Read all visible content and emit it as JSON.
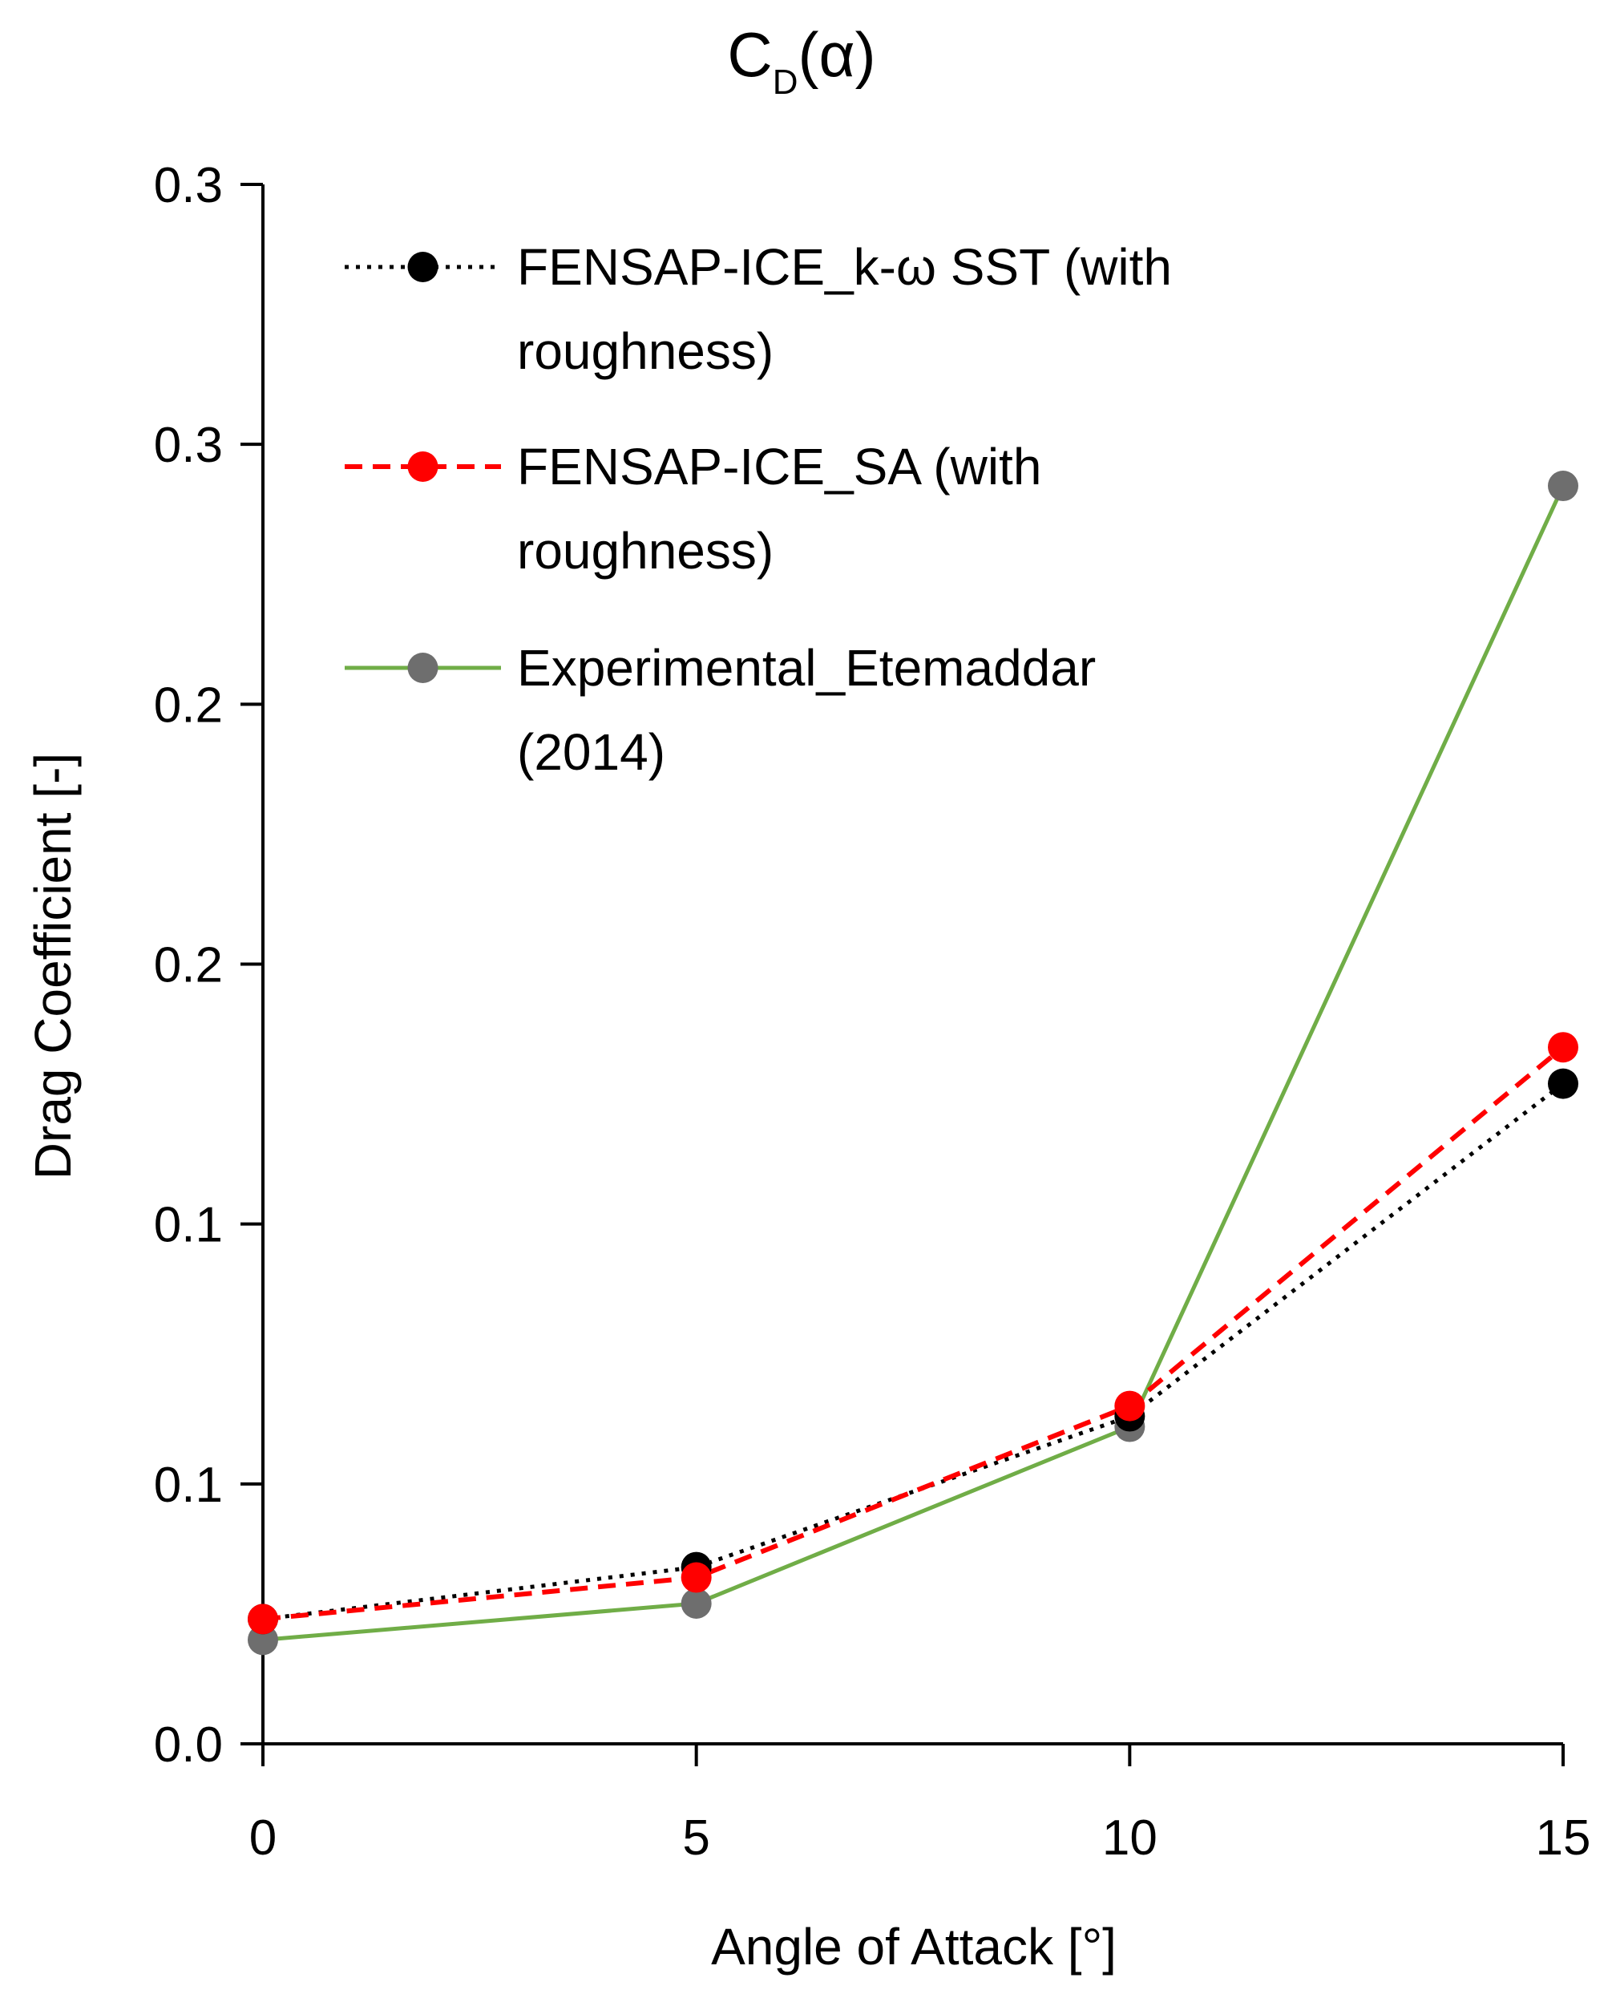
{
  "chart_data": {
    "type": "line",
    "title": {
      "main": "C",
      "sub": "D",
      "suffix": "(α)"
    },
    "xlabel": "Angle of Attack [°]",
    "ylabel": "Drag Coefficient [-]",
    "x": [
      0,
      5,
      10,
      15
    ],
    "x_ticks": [
      "0",
      "5",
      "10",
      "15"
    ],
    "xlim": [
      0,
      15
    ],
    "ylim": [
      0,
      0.3
    ],
    "y_ticks": [
      {
        "value": 0.0,
        "label": "0.0"
      },
      {
        "value": 0.05,
        "label": "0.1"
      },
      {
        "value": 0.1,
        "label": "0.1"
      },
      {
        "value": 0.15,
        "label": "0.2"
      },
      {
        "value": 0.2,
        "label": "0.2"
      },
      {
        "value": 0.25,
        "label": "0.3"
      },
      {
        "value": 0.3,
        "label": "0.3"
      }
    ],
    "grid": false,
    "legend_position": "top-left",
    "series": [
      {
        "key": "sst",
        "name_lines": [
          "FENSAP-ICE_k-ω  SST (with",
          "roughness)"
        ],
        "values": [
          0.024,
          0.034,
          0.063,
          0.127
        ],
        "line_color": "#000000",
        "marker_color": "#000000",
        "line_style": "dotted"
      },
      {
        "key": "sa",
        "name_lines": [
          "FENSAP-ICE_SA (with",
          "roughness)"
        ],
        "values": [
          0.024,
          0.032,
          0.065,
          0.134
        ],
        "line_color": "#ff0000",
        "marker_color": "#ff0000",
        "line_style": "dashed"
      },
      {
        "key": "exp",
        "name_lines": [
          "Experimental_Etemaddar",
          "(2014)"
        ],
        "values": [
          0.02,
          0.027,
          0.061,
          0.242
        ],
        "line_color": "#70ad47",
        "marker_color": "#6e6e6e",
        "line_style": "solid"
      }
    ]
  }
}
